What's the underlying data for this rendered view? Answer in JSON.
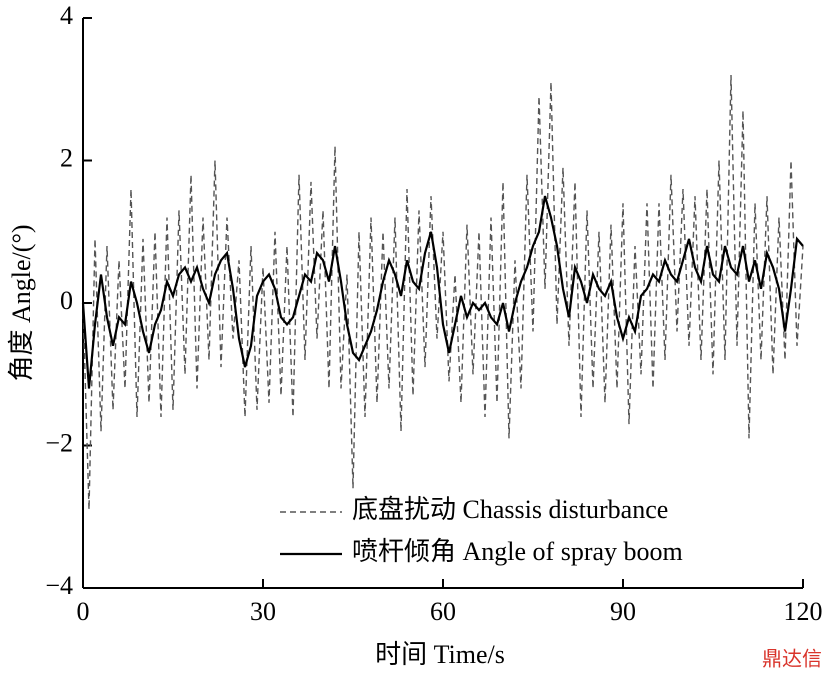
{
  "chart_data": {
    "type": "line",
    "xlabel": "时间 Time/s",
    "ylabel": "角度 Angle/(°)",
    "watermark": "鼎达信",
    "x": [
      0,
      1,
      2,
      3,
      4,
      5,
      6,
      7,
      8,
      9,
      10,
      11,
      12,
      13,
      14,
      15,
      16,
      17,
      18,
      19,
      20,
      21,
      22,
      23,
      24,
      25,
      26,
      27,
      28,
      29,
      30,
      31,
      32,
      33,
      34,
      35,
      36,
      37,
      38,
      39,
      40,
      41,
      42,
      43,
      44,
      45,
      46,
      47,
      48,
      49,
      50,
      51,
      52,
      53,
      54,
      55,
      56,
      57,
      58,
      59,
      60,
      61,
      62,
      63,
      64,
      65,
      66,
      67,
      68,
      69,
      70,
      71,
      72,
      73,
      74,
      75,
      76,
      77,
      78,
      79,
      80,
      81,
      82,
      83,
      84,
      85,
      86,
      87,
      88,
      89,
      90,
      91,
      92,
      93,
      94,
      95,
      96,
      97,
      98,
      99,
      100,
      101,
      102,
      103,
      104,
      105,
      106,
      107,
      108,
      109,
      110,
      111,
      112,
      113,
      114,
      115,
      116,
      117,
      118,
      119,
      120
    ],
    "series": [
      {
        "name": "底盘扰动 Chassis disturbance",
        "color": "#555555",
        "style": "dashed",
        "values": [
          0,
          -2.9,
          0.9,
          -1.8,
          0.8,
          -1.5,
          0.6,
          -1.2,
          1.6,
          -1.6,
          0.9,
          -1.4,
          1.0,
          -1.6,
          1.2,
          -1.5,
          1.3,
          -1.0,
          1.8,
          -1.2,
          1.2,
          -0.8,
          2.0,
          -0.9,
          1.2,
          -0.5,
          0.6,
          -1.6,
          0.8,
          -1.5,
          0.5,
          -1.4,
          1.0,
          -1.3,
          0.8,
          -1.6,
          1.8,
          -0.8,
          1.7,
          -0.5,
          1.3,
          -1.2,
          2.2,
          -1.2,
          0.4,
          -2.6,
          1.0,
          -1.6,
          1.2,
          -1.4,
          1.0,
          -1.2,
          1.2,
          -1.8,
          1.6,
          -1.3,
          1.3,
          -0.9,
          1.5,
          -0.5,
          1.0,
          -1.1,
          0.4,
          -1.4,
          1.1,
          -1.0,
          1.0,
          -1.6,
          1.2,
          -1.4,
          1.7,
          -1.9,
          0.6,
          -1.2,
          1.8,
          -0.4,
          2.9,
          0.2,
          3.1,
          -0.3,
          1.9,
          -0.6,
          1.7,
          -1.6,
          1.3,
          -1.2,
          1.0,
          -1.4,
          1.1,
          -1.2,
          1.4,
          -1.7,
          0.8,
          -1.0,
          1.4,
          -1.2,
          1.4,
          -0.8,
          1.8,
          -0.4,
          1.6,
          -0.6,
          1.5,
          -0.8,
          1.6,
          -1.0,
          2.0,
          -0.8,
          3.2,
          -0.6,
          2.7,
          -1.9,
          1.4,
          -0.8,
          1.5,
          -1.0,
          1.2,
          -0.8,
          2.0,
          -0.6,
          0.8
        ]
      },
      {
        "name": "喷杆倾角 Angle of spray boom",
        "color": "#000000",
        "style": "solid",
        "values": [
          0,
          -1.2,
          -0.3,
          0.4,
          -0.2,
          -0.6,
          -0.2,
          -0.3,
          0.3,
          0.0,
          -0.4,
          -0.7,
          -0.3,
          -0.1,
          0.3,
          0.1,
          0.4,
          0.5,
          0.3,
          0.5,
          0.2,
          0.0,
          0.4,
          0.6,
          0.7,
          0.2,
          -0.5,
          -0.9,
          -0.6,
          0.1,
          0.3,
          0.4,
          0.2,
          -0.2,
          -0.3,
          -0.2,
          0.1,
          0.4,
          0.3,
          0.7,
          0.6,
          0.3,
          0.8,
          0.3,
          -0.3,
          -0.7,
          -0.8,
          -0.6,
          -0.4,
          -0.1,
          0.3,
          0.6,
          0.4,
          0.1,
          0.6,
          0.3,
          0.2,
          0.7,
          1.0,
          0.5,
          -0.3,
          -0.7,
          -0.3,
          0.1,
          -0.2,
          0.0,
          -0.1,
          0.0,
          -0.2,
          -0.3,
          0.0,
          -0.4,
          0.0,
          0.3,
          0.5,
          0.8,
          1.0,
          1.5,
          1.2,
          0.8,
          0.2,
          -0.2,
          0.5,
          0.3,
          0.0,
          0.4,
          0.2,
          0.1,
          0.3,
          -0.2,
          -0.5,
          -0.2,
          -0.4,
          0.1,
          0.2,
          0.4,
          0.3,
          0.6,
          0.4,
          0.3,
          0.6,
          0.9,
          0.5,
          0.3,
          0.8,
          0.4,
          0.3,
          0.8,
          0.5,
          0.4,
          0.8,
          0.3,
          0.6,
          0.2,
          0.7,
          0.5,
          0.2,
          -0.4,
          0.2,
          0.9,
          0.8
        ]
      }
    ],
    "xlim": [
      0,
      120
    ],
    "xticks": [
      0,
      30,
      60,
      90,
      120
    ],
    "ylim": [
      -4,
      4
    ],
    "yticks": [
      {
        "value": -4,
        "label": "−4"
      },
      {
        "value": -2,
        "label": "−2"
      },
      0,
      2,
      4
    ],
    "legend": "lower center"
  }
}
